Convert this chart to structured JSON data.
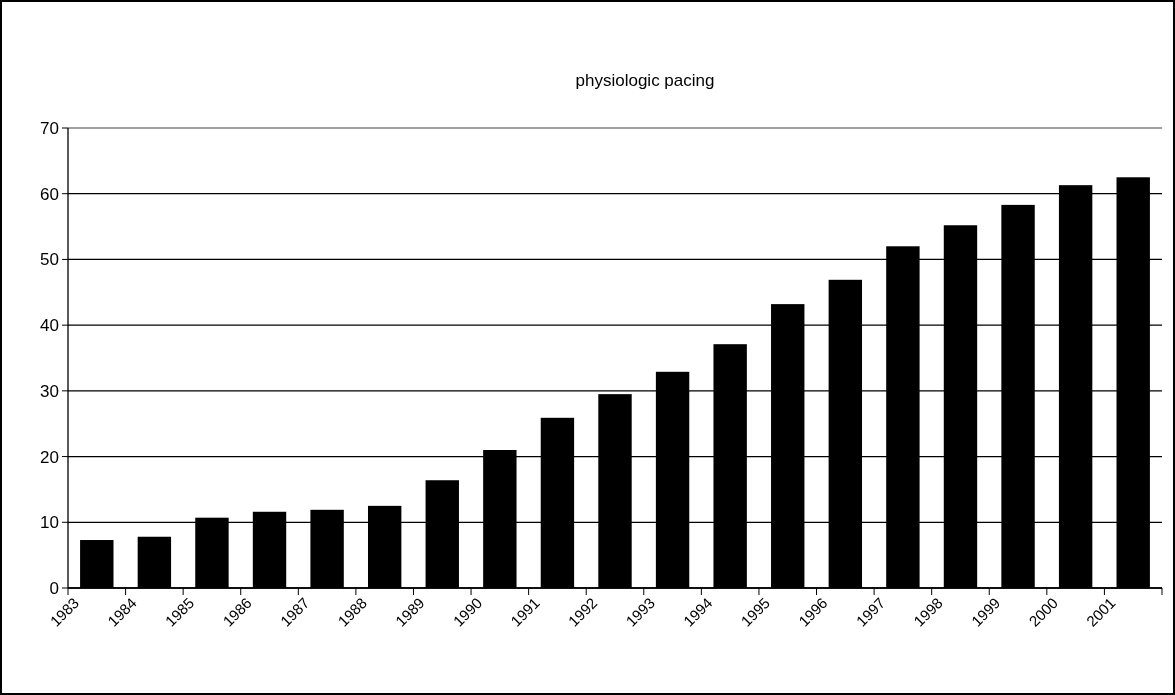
{
  "chart_data": {
    "type": "bar",
    "title": "physiologic pacing",
    "categories": [
      "1983",
      "1984",
      "1985",
      "1986",
      "1987",
      "1988",
      "1989",
      "1990",
      "1991",
      "1992",
      "1993",
      "1994",
      "1995",
      "1996",
      "1997",
      "1998",
      "1999",
      "2000",
      "2001"
    ],
    "values": [
      7.3,
      7.8,
      10.7,
      11.6,
      11.9,
      12.5,
      16.4,
      21,
      25.9,
      29.5,
      32.9,
      37.1,
      43.2,
      46.9,
      52,
      55.2,
      58.3,
      61.3,
      62.5
    ],
    "color": "#000000",
    "ylim": [
      0,
      70
    ],
    "yticks": [
      0,
      10,
      20,
      30,
      40,
      50,
      60,
      70
    ],
    "grid": "y"
  }
}
